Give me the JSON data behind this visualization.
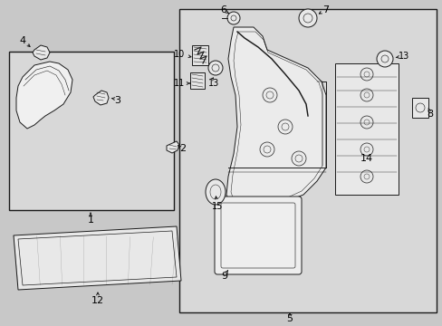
{
  "fig_width": 4.89,
  "fig_height": 3.6,
  "dpi": 100,
  "bg_color": "#c8c8c8",
  "box_bg": "#d4d4d4",
  "white": "#ffffff",
  "line_color": "#1a1a1a",
  "label_color": "#000000",
  "label_fs": 8,
  "lw": 0.7
}
